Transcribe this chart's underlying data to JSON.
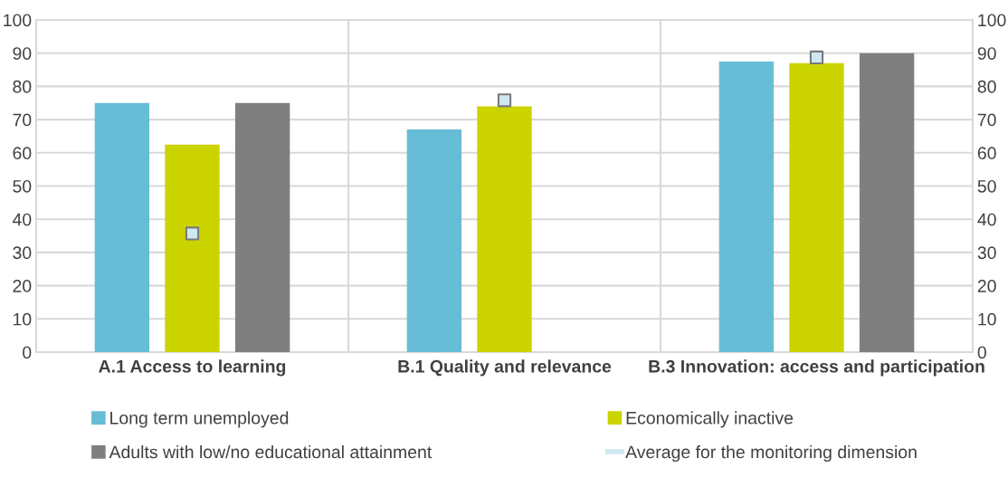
{
  "chart_data": {
    "type": "bar",
    "categories": [
      "A.1 Access to learning",
      "B.1 Quality and relevance",
      "B.3 Innovation: access and participation"
    ],
    "series": [
      {
        "name": "Long term unemployed",
        "color": "#67bcd6",
        "values": [
          75,
          67,
          87.5
        ]
      },
      {
        "name": "Economically inactive",
        "color": "#ccd400",
        "values": [
          62.5,
          74,
          87
        ]
      },
      {
        "name": "Adults with low/no educational attainment",
        "color": "#7f7f7f",
        "values": [
          75,
          null,
          90
        ]
      },
      {
        "name": "Average for the monitoring dimension",
        "type": "scatter",
        "marker": "square",
        "color": "#cfe8f0",
        "values": [
          35.7,
          75.8,
          88.7
        ]
      }
    ],
    "ylim": [
      0,
      100
    ],
    "yticks": [
      0,
      10,
      20,
      30,
      40,
      50,
      60,
      70,
      80,
      90,
      100
    ],
    "y2lim": [
      0,
      100
    ],
    "y2ticks": [
      0,
      10,
      20,
      30,
      40,
      50,
      60,
      70,
      80,
      90,
      100
    ],
    "grid": true,
    "legend": "bottom"
  }
}
